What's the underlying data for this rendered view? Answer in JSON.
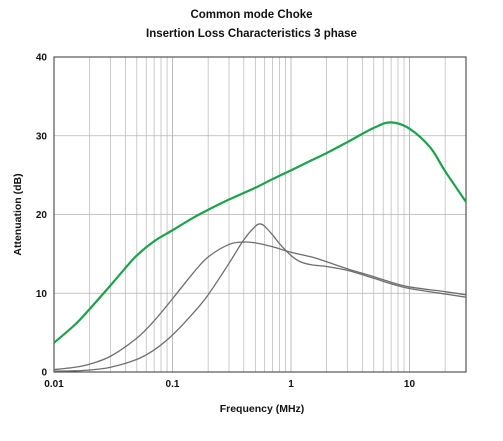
{
  "chart_data": {
    "type": "line",
    "title": "Common mode Choke",
    "subtitle": "Insertion Loss Characteristics 3 phase",
    "xlabel": "Frequency (MHz)",
    "ylabel": "Attenuation (dB)",
    "xscale": "log",
    "xlim": [
      0.01,
      30
    ],
    "ylim": [
      0,
      40
    ],
    "grid": true,
    "x_ticks": [
      0.01,
      0.1,
      1,
      10
    ],
    "x_tick_labels": [
      "0.01",
      "0.1",
      "1",
      "10"
    ],
    "y_ticks": [
      0,
      10,
      20,
      30,
      40
    ],
    "y_tick_labels": [
      "0",
      "10",
      "20",
      "30",
      "40"
    ],
    "colors": {
      "green": "#1aa34a",
      "gray": "#6e6e6e"
    },
    "series": [
      {
        "color": "#1aa34a",
        "x": [
          0.01,
          0.015,
          0.02,
          0.03,
          0.04,
          0.05,
          0.07,
          0.1,
          0.15,
          0.2,
          0.3,
          0.5,
          0.7,
          1,
          1.5,
          2,
          3,
          5,
          7,
          10,
          15,
          20,
          30
        ],
        "y": [
          3.7,
          6.0,
          8.0,
          11.0,
          13.2,
          14.8,
          16.6,
          18.0,
          19.6,
          20.6,
          21.9,
          23.4,
          24.5,
          25.6,
          26.9,
          27.8,
          29.2,
          31.0,
          31.7,
          30.9,
          28.5,
          25.5,
          21.6
        ]
      },
      {
        "color": "#6e6e6e",
        "x": [
          0.01,
          0.015,
          0.02,
          0.03,
          0.05,
          0.07,
          0.1,
          0.15,
          0.2,
          0.3,
          0.4,
          0.5,
          0.7,
          1,
          1.5,
          2,
          3,
          5,
          7,
          10,
          20,
          30
        ],
        "y": [
          0.3,
          0.6,
          1.0,
          2.0,
          4.3,
          6.5,
          9.3,
          12.6,
          14.6,
          16.2,
          16.5,
          16.4,
          15.9,
          15.2,
          14.6,
          14.0,
          13.1,
          12.1,
          11.4,
          10.8,
          10.2,
          9.8
        ]
      },
      {
        "color": "#6e6e6e",
        "x": [
          0.01,
          0.015,
          0.02,
          0.03,
          0.05,
          0.07,
          0.1,
          0.15,
          0.2,
          0.3,
          0.4,
          0.5,
          0.55,
          0.6,
          0.7,
          0.8,
          1,
          1.2,
          1.5,
          2,
          3,
          5,
          7,
          10,
          20,
          30
        ],
        "y": [
          0.1,
          0.15,
          0.25,
          0.6,
          1.6,
          2.8,
          4.7,
          7.5,
          9.8,
          13.8,
          16.8,
          18.5,
          18.8,
          18.5,
          17.4,
          16.3,
          14.8,
          14.0,
          13.6,
          13.4,
          12.9,
          11.9,
          11.2,
          10.6,
          9.9,
          9.5
        ]
      }
    ]
  }
}
